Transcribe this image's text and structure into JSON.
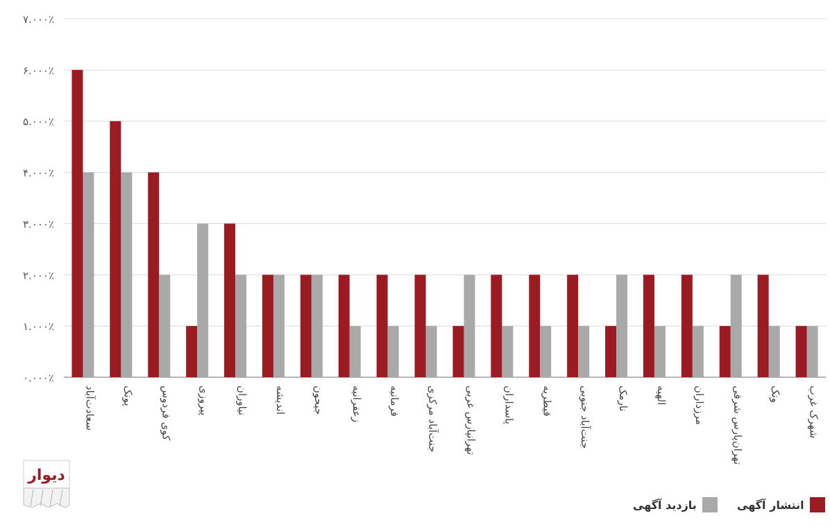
{
  "chart_data": {
    "type": "bar",
    "categories": [
      "سعادت‌آباد",
      "پونک",
      "کوی فردوس",
      "پیروزی",
      "نیاوران",
      "اندیشه",
      "جیحون",
      "زعفرانیه",
      "فرمانیه",
      "جنت‌آباد مرکزی",
      "تهرانپارس غربی",
      "پاسداران",
      "قیطریه",
      "جنت‌آباد جنوبی",
      "نارمک",
      "الهیه",
      "مرزداران",
      "تهران‌پارس شرقی",
      "ونک",
      "شهرک غرب"
    ],
    "series": [
      {
        "name": "انتشار آگهی",
        "color": "#9a1b22",
        "values": [
          6,
          5,
          4,
          1,
          3,
          2,
          2,
          2,
          2,
          2,
          1,
          2,
          2,
          2,
          1,
          2,
          2,
          1,
          2,
          1
        ]
      },
      {
        "name": "بازدید آگهی",
        "color": "#a9a9a9",
        "values": [
          4,
          4,
          2,
          3,
          2,
          2,
          2,
          1,
          1,
          1,
          2,
          1,
          1,
          1,
          2,
          1,
          1,
          2,
          1,
          1
        ]
      }
    ],
    "yticks": [
      "۰.۰۰۰٪",
      "۱.۰۰۰٪",
      "۲.۰۰۰٪",
      "۳.۰۰۰٪",
      "۴.۰۰۰٪",
      "۵.۰۰۰٪",
      "۶.۰۰۰٪",
      "۷.۰۰۰٪"
    ],
    "ylim": [
      0,
      7
    ],
    "grid": true,
    "legend_position": "bottom-right"
  },
  "legend": {
    "published": "انتشار آگهی",
    "visits": "بازدید آگهی"
  },
  "logo": {
    "text": "دیوار"
  }
}
